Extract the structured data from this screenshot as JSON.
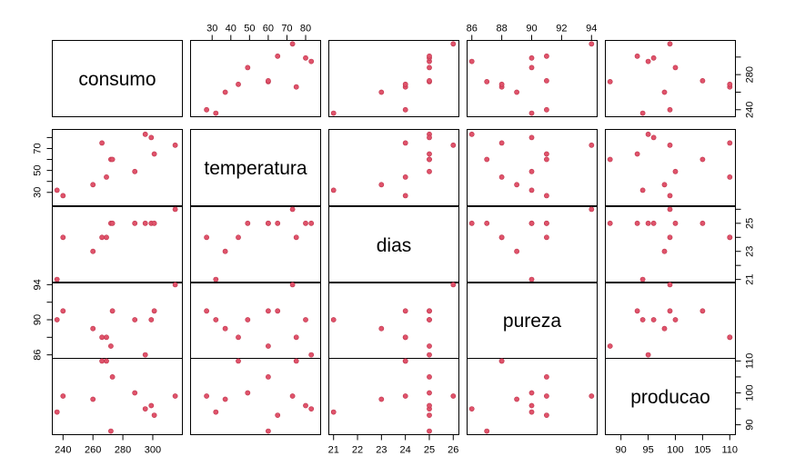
{
  "chart_data": {
    "type": "scatter",
    "subtype": "pairs-matrix",
    "variables": [
      "consumo",
      "temperatura",
      "dias",
      "pureza",
      "producao"
    ],
    "point_color": "#df536b",
    "axes": {
      "consumo": {
        "lim": [
          236,
          316
        ],
        "ticks": [
          240,
          260,
          280,
          300
        ],
        "tick_labels": [
          "240",
          "260",
          "280",
          "300"
        ]
      },
      "temperatura": {
        "lim": [
          21,
          85
        ],
        "ticks": [
          30,
          40,
          50,
          60,
          70,
          80
        ],
        "tick_labels": [
          "30",
          "40",
          "50",
          "60",
          "70",
          "80"
        ]
      },
      "dias": {
        "lim": [
          21,
          26
        ],
        "ticks": [
          21,
          22,
          23,
          24,
          25,
          26
        ],
        "tick_labels": [
          "21",
          "22",
          "23",
          "24",
          "25",
          "26"
        ]
      },
      "pureza": {
        "lim": [
          86,
          94
        ],
        "ticks": [
          86,
          88,
          90,
          92,
          94
        ],
        "tick_labels": [
          "86",
          "88",
          "90",
          "92",
          "94"
        ]
      },
      "producao": {
        "lim": [
          88,
          110
        ],
        "ticks": [
          90,
          95,
          100,
          105,
          110
        ],
        "tick_labels": [
          "90",
          "95",
          "100",
          "105",
          "110"
        ]
      }
    },
    "axis_label_sides": {
      "consumo": {
        "x": "bottom",
        "y": "right",
        "y_ticks_shown": [
          240,
          280
        ]
      },
      "temperatura": {
        "x": "top",
        "y": "left",
        "y_ticks_shown": [
          30,
          50,
          70
        ]
      },
      "dias": {
        "x": "bottom",
        "y": "right",
        "y_ticks_shown": [
          21,
          23,
          25
        ]
      },
      "pureza": {
        "x": "top",
        "y": "left",
        "y_ticks_shown": [
          86,
          90,
          94
        ]
      },
      "producao": {
        "x": "bottom",
        "y": "right",
        "y_ticks_shown": [
          90,
          100,
          110
        ]
      }
    },
    "observations": [
      {
        "consumo": 236,
        "temperatura": 32,
        "dias": 21,
        "pureza": 90,
        "producao": 94
      },
      {
        "consumo": 240,
        "temperatura": 27,
        "dias": 24,
        "pureza": 91,
        "producao": 99
      },
      {
        "consumo": 260,
        "temperatura": 37,
        "dias": 23,
        "pureza": 89,
        "producao": 98
      },
      {
        "consumo": 266,
        "temperatura": 75,
        "dias": 24,
        "pureza": 88,
        "producao": 110
      },
      {
        "consumo": 269,
        "temperatura": 44,
        "dias": 24,
        "pureza": 88,
        "producao": 110
      },
      {
        "consumo": 272,
        "temperatura": 60,
        "dias": 25,
        "pureza": 87,
        "producao": 88
      },
      {
        "consumo": 273,
        "temperatura": 60,
        "dias": 25,
        "pureza": 91,
        "producao": 105
      },
      {
        "consumo": 288,
        "temperatura": 49,
        "dias": 25,
        "pureza": 90,
        "producao": 100
      },
      {
        "consumo": 295,
        "temperatura": 83,
        "dias": 25,
        "pureza": 86,
        "producao": 95
      },
      {
        "consumo": 299,
        "temperatura": 80,
        "dias": 25,
        "pureza": 90,
        "producao": 96
      },
      {
        "consumo": 301,
        "temperatura": 65,
        "dias": 25,
        "pureza": 91,
        "producao": 93
      },
      {
        "consumo": 315,
        "temperatura": 73,
        "dias": 26,
        "pureza": 94,
        "producao": 99
      }
    ]
  }
}
